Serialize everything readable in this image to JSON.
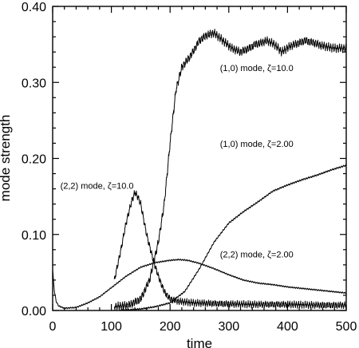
{
  "chart_data": {
    "type": "line",
    "title": "",
    "xlabel": "time",
    "ylabel": "mode strength",
    "xlim": [
      0,
      500
    ],
    "ylim": [
      0,
      0.4
    ],
    "grid": false,
    "legend": "none",
    "x_ticks": [
      "0",
      "100",
      "200",
      "300",
      "400",
      "500"
    ],
    "y_ticks": [
      "0.00",
      "0.10",
      "0.20",
      "0.30",
      "0.40"
    ],
    "series": [
      {
        "name": "(1,0) mode, ζ=10.0",
        "noise": 0.006,
        "points": [
          [
            105,
            0.005
          ],
          [
            130,
            0.007
          ],
          [
            150,
            0.015
          ],
          [
            165,
            0.04
          ],
          [
            180,
            0.09
          ],
          [
            190,
            0.14
          ],
          [
            200,
            0.22
          ],
          [
            210,
            0.29
          ],
          [
            220,
            0.32
          ],
          [
            235,
            0.335
          ],
          [
            250,
            0.355
          ],
          [
            262,
            0.362
          ],
          [
            275,
            0.365
          ],
          [
            290,
            0.355
          ],
          [
            305,
            0.345
          ],
          [
            320,
            0.34
          ],
          [
            335,
            0.345
          ],
          [
            345,
            0.35
          ],
          [
            355,
            0.352
          ],
          [
            365,
            0.355
          ],
          [
            378,
            0.35
          ],
          [
            390,
            0.34
          ],
          [
            405,
            0.348
          ],
          [
            420,
            0.352
          ],
          [
            430,
            0.355
          ],
          [
            445,
            0.352
          ],
          [
            460,
            0.348
          ],
          [
            480,
            0.345
          ],
          [
            500,
            0.345
          ]
        ]
      },
      {
        "name": "(1,0) mode, ζ=2.00",
        "noise": 0.0012,
        "points": [
          [
            115,
            0.0
          ],
          [
            150,
            0.002
          ],
          [
            175,
            0.005
          ],
          [
            200,
            0.01
          ],
          [
            225,
            0.025
          ],
          [
            250,
            0.055
          ],
          [
            275,
            0.09
          ],
          [
            300,
            0.115
          ],
          [
            325,
            0.13
          ],
          [
            350,
            0.143
          ],
          [
            375,
            0.157
          ],
          [
            400,
            0.165
          ],
          [
            425,
            0.172
          ],
          [
            450,
            0.178
          ],
          [
            475,
            0.185
          ],
          [
            500,
            0.191
          ]
        ]
      },
      {
        "name": "(2,2) mode, ζ=10.0",
        "noise": 0.005,
        "points": [
          [
            105,
            0.04
          ],
          [
            115,
            0.075
          ],
          [
            125,
            0.115
          ],
          [
            135,
            0.145
          ],
          [
            140,
            0.155
          ],
          [
            145,
            0.15
          ],
          [
            150,
            0.14
          ],
          [
            160,
            0.1
          ],
          [
            170,
            0.07
          ],
          [
            180,
            0.045
          ],
          [
            190,
            0.025
          ],
          [
            200,
            0.015
          ],
          [
            215,
            0.012
          ],
          [
            240,
            0.01
          ],
          [
            280,
            0.009
          ],
          [
            340,
            0.008
          ],
          [
            400,
            0.008
          ],
          [
            460,
            0.007
          ],
          [
            500,
            0.007
          ]
        ]
      },
      {
        "name": "(2,2) mode, ζ=2.00",
        "noise": 0.001,
        "points": [
          [
            0,
            0.053
          ],
          [
            3,
            0.025
          ],
          [
            6,
            0.012
          ],
          [
            10,
            0.006
          ],
          [
            20,
            0.003
          ],
          [
            40,
            0.004
          ],
          [
            60,
            0.01
          ],
          [
            80,
            0.018
          ],
          [
            100,
            0.03
          ],
          [
            125,
            0.045
          ],
          [
            150,
            0.057
          ],
          [
            175,
            0.063
          ],
          [
            200,
            0.066
          ],
          [
            215,
            0.067
          ],
          [
            230,
            0.066
          ],
          [
            250,
            0.062
          ],
          [
            275,
            0.055
          ],
          [
            300,
            0.047
          ],
          [
            325,
            0.04
          ],
          [
            350,
            0.036
          ],
          [
            375,
            0.034
          ],
          [
            400,
            0.031
          ],
          [
            425,
            0.029
          ],
          [
            450,
            0.027
          ],
          [
            475,
            0.025
          ],
          [
            500,
            0.023
          ]
        ]
      }
    ],
    "annotations": [
      {
        "text": "(1,0) mode, ζ=10.0",
        "x": 285,
        "y": 0.315
      },
      {
        "text": "(1,0) mode, ζ=2.00",
        "x": 285,
        "y": 0.215
      },
      {
        "text": "(2,2) mode, ζ=10.0",
        "x": 13,
        "y": 0.16
      },
      {
        "text": "(2,2) mode, ζ=2.00",
        "x": 285,
        "y": 0.07
      }
    ]
  }
}
